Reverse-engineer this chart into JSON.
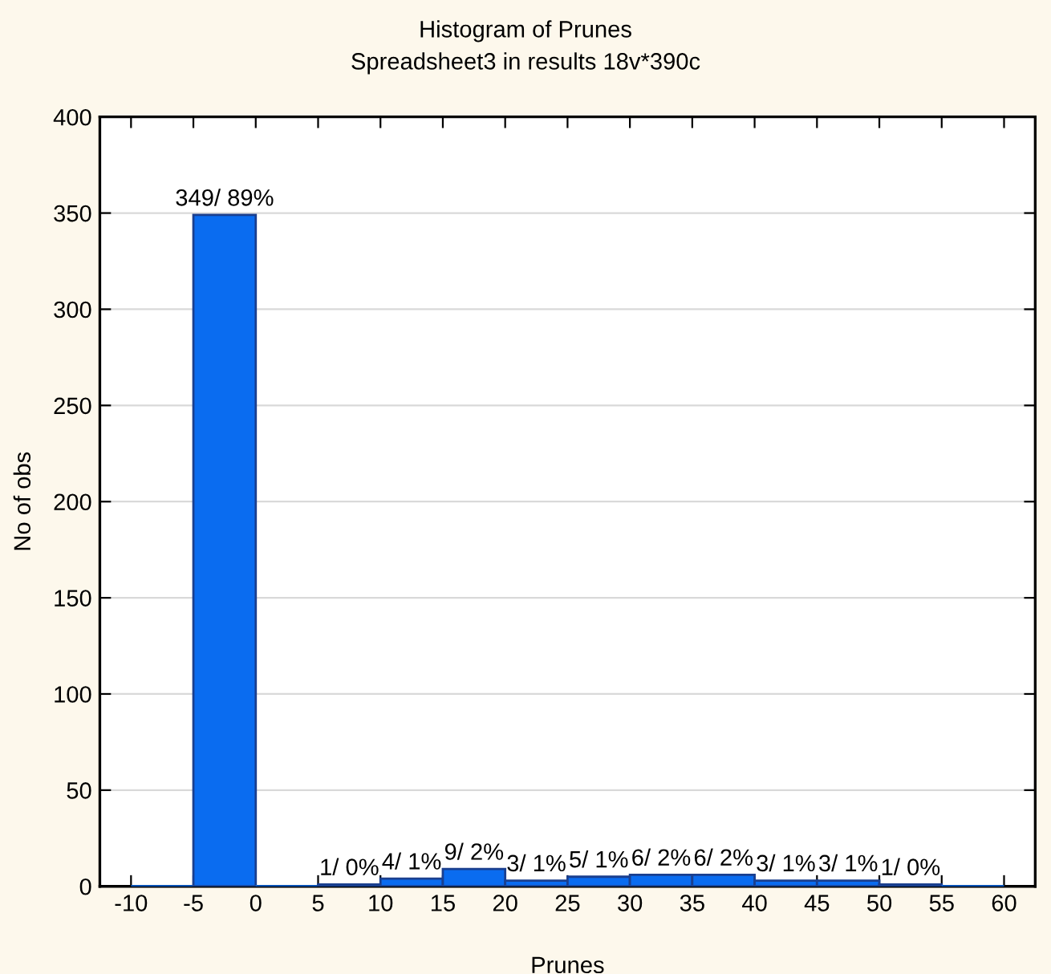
{
  "chart_data": {
    "type": "histogram",
    "title": "Histogram of Prunes",
    "subtitle": "Spreadsheet3 in results 18v*390c",
    "xlabel": "Prunes",
    "ylabel": "No of obs",
    "bins": [
      -10,
      -5,
      0,
      5,
      10,
      15,
      20,
      25,
      30,
      35,
      40,
      45,
      50,
      55,
      60
    ],
    "values": [
      0,
      349,
      0,
      1,
      4,
      9,
      3,
      5,
      6,
      6,
      3,
      3,
      1,
      0
    ],
    "value_labels": [
      null,
      "349/ 89%",
      null,
      "1/ 0%",
      "4/ 1%",
      "9/ 2%",
      "3/ 1%",
      "5/ 1%",
      "6/ 2%",
      "6/ 2%",
      "3/ 1%",
      "3/ 1%",
      "1/ 0%",
      null
    ],
    "color": "#0a6cf0",
    "xlim": [
      -12.5,
      62.5
    ],
    "xticks": [
      -10,
      -5,
      0,
      5,
      10,
      15,
      20,
      25,
      30,
      35,
      40,
      45,
      50,
      55,
      60
    ],
    "ylim": [
      0,
      400
    ],
    "yticks": [
      0,
      50,
      100,
      150,
      200,
      250,
      300,
      350,
      400
    ],
    "grid": "y",
    "legend": false
  }
}
